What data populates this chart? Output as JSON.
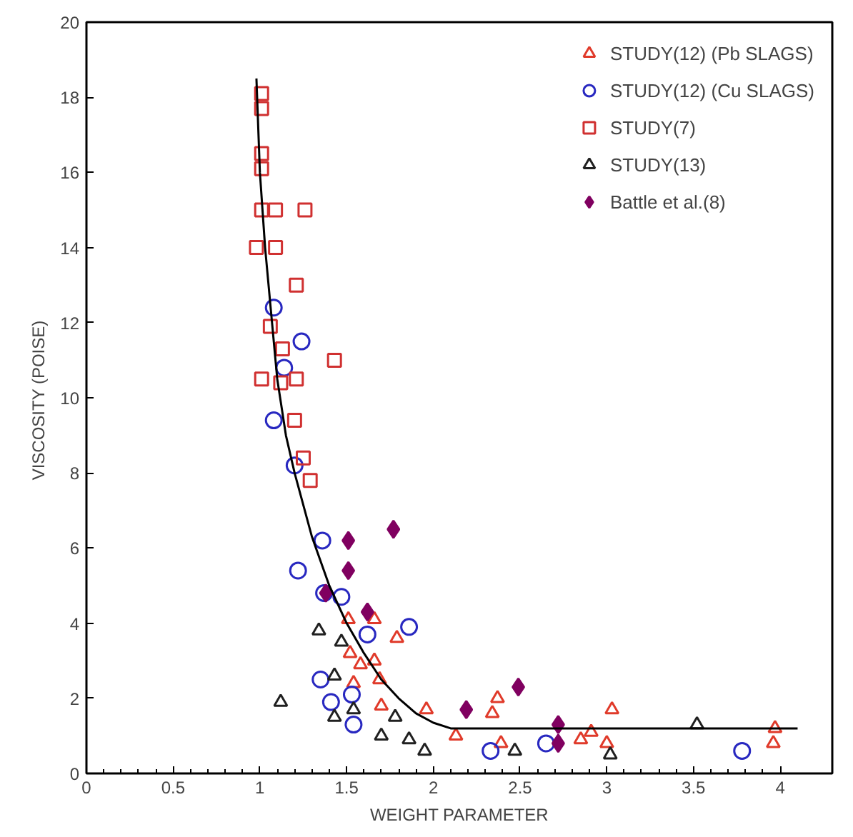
{
  "chart_data": {
    "type": "scatter",
    "xlabel": "WEIGHT PARAMETER",
    "ylabel": "VISCOSITY  (POISE)",
    "xlim": [
      0,
      4.3
    ],
    "ylim": [
      0,
      20
    ],
    "xticks": [
      0,
      0.5,
      1,
      1.5,
      2,
      2.5,
      3,
      3.5,
      4
    ],
    "yticks": [
      0,
      2,
      4,
      6,
      8,
      10,
      12,
      14,
      16,
      18,
      20
    ],
    "grid": false,
    "legend": "top right",
    "series": [
      {
        "name": "STUDY(12) (Pb SLAGS)",
        "marker": "triangle",
        "color": "#e03a2a",
        "x": [
          1.51,
          1.66,
          1.79,
          1.52,
          1.58,
          1.66,
          1.69,
          1.54,
          1.7,
          1.96,
          2.13,
          2.37,
          2.34,
          2.39,
          2.85,
          2.91,
          3.0,
          3.03,
          3.97,
          3.96
        ],
        "values": [
          4.1,
          4.1,
          3.6,
          3.2,
          2.9,
          3.0,
          2.5,
          2.4,
          1.8,
          1.7,
          1.0,
          2.0,
          1.6,
          0.8,
          0.9,
          1.1,
          0.8,
          1.7,
          1.2,
          0.8
        ]
      },
      {
        "name": "STUDY(12) (Cu SLAGS)",
        "marker": "circle",
        "color": "#2828c0",
        "x": [
          1.08,
          1.24,
          1.14,
          1.08,
          1.2,
          1.36,
          1.22,
          1.37,
          1.47,
          1.62,
          1.86,
          1.35,
          1.41,
          1.53,
          1.54,
          2.33,
          2.65,
          3.78
        ],
        "values": [
          12.4,
          11.5,
          10.8,
          9.4,
          8.2,
          6.2,
          5.4,
          4.8,
          4.7,
          3.7,
          3.9,
          2.5,
          1.9,
          2.1,
          1.3,
          0.6,
          0.8,
          0.6
        ]
      },
      {
        "name": "STUDY(7)",
        "marker": "square",
        "color": "#d03030",
        "x": [
          1.01,
          1.01,
          1.01,
          1.01,
          1.01,
          1.09,
          1.26,
          0.98,
          1.09,
          1.21,
          1.06,
          1.13,
          1.43,
          1.01,
          1.12,
          1.21,
          1.2,
          1.25,
          1.29
        ],
        "values": [
          18.1,
          17.7,
          16.5,
          16.1,
          15.0,
          15.0,
          15.0,
          14.0,
          14.0,
          13.0,
          11.9,
          11.3,
          11.0,
          10.5,
          10.4,
          10.5,
          9.4,
          8.4,
          7.8
        ]
      },
      {
        "name": "STUDY(13)",
        "marker": "triangle",
        "color": "#202020",
        "x": [
          1.34,
          1.47,
          1.43,
          1.12,
          1.43,
          1.54,
          1.78,
          1.7,
          1.86,
          1.95,
          2.47,
          3.02,
          3.52
        ],
        "values": [
          3.8,
          3.5,
          2.6,
          1.9,
          1.5,
          1.7,
          1.5,
          1.0,
          0.9,
          0.6,
          0.6,
          0.5,
          1.3
        ]
      },
      {
        "name": "Battle et al.(8)",
        "marker": "diamond",
        "color": "#800060",
        "x": [
          1.77,
          1.51,
          1.51,
          1.38,
          1.62,
          2.19,
          2.49,
          2.72,
          2.72
        ],
        "values": [
          6.5,
          6.2,
          5.4,
          4.8,
          4.3,
          1.7,
          2.3,
          1.3,
          0.8
        ]
      },
      {
        "type": "line",
        "color": "#000000",
        "x": [
          0.98,
          1.0,
          1.03,
          1.07,
          1.1,
          1.15,
          1.2,
          1.3,
          1.4,
          1.5,
          1.6,
          1.7,
          1.8,
          1.9,
          2.0,
          2.1,
          2.2,
          4.1
        ],
        "values": [
          18.5,
          16.0,
          14.0,
          12.0,
          10.5,
          9.0,
          8.0,
          6.3,
          5.0,
          4.0,
          3.2,
          2.5,
          2.0,
          1.6,
          1.35,
          1.2,
          1.2,
          1.2
        ]
      }
    ]
  }
}
